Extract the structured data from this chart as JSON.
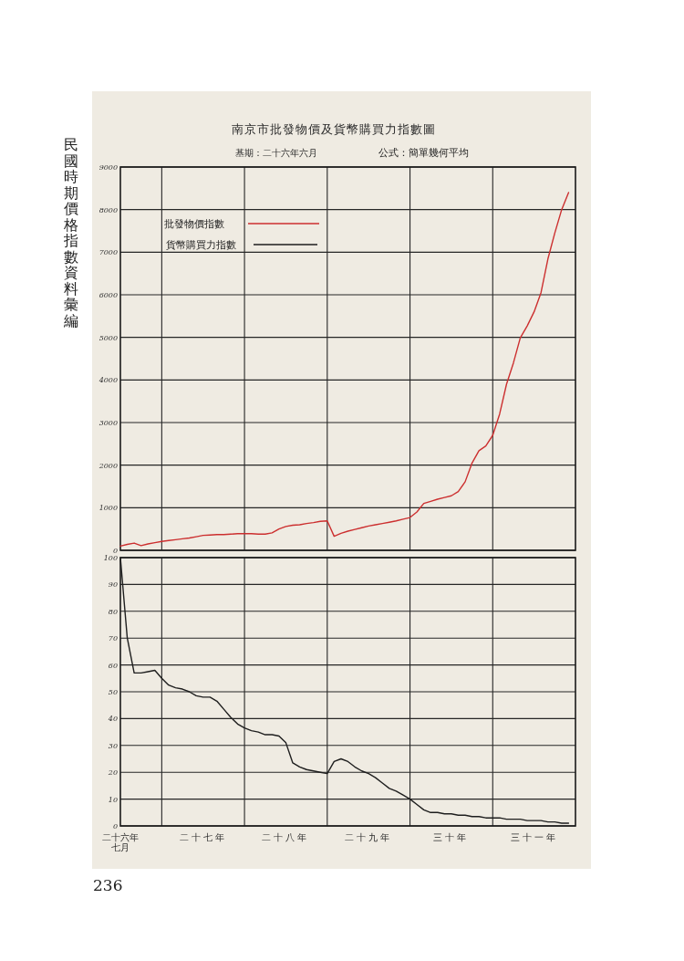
{
  "chart_data": [
    {
      "type": "line",
      "title": "南京市批發物價及貨幣購買力指數圖",
      "subtitle": "基期：二十六年六月",
      "annotations": [
        "公式：簡單幾何平均",
        "民國時期價格指數資料彙編",
        "236"
      ],
      "categories": [
        "二十六年七月",
        null,
        null,
        null,
        null,
        null,
        null,
        null,
        null,
        null,
        null,
        null,
        "二十七年",
        null,
        null,
        null,
        null,
        null,
        null,
        null,
        null,
        null,
        null,
        null,
        "二十八年",
        null,
        null,
        null,
        null,
        null,
        null,
        null,
        null,
        null,
        null,
        null,
        "二十九年",
        null,
        null,
        null,
        null,
        null,
        null,
        null,
        null,
        null,
        null,
        null,
        "三十年",
        null,
        null,
        null,
        null,
        null,
        null,
        null,
        null,
        null,
        null,
        null,
        "三十一年",
        null,
        null,
        null,
        null,
        null
      ],
      "ylim": [
        0,
        9000
      ],
      "yticks": [
        0,
        1000,
        2000,
        3000,
        4000,
        5000,
        6000,
        7000,
        8000,
        9000
      ],
      "grid": true,
      "legend": "top left",
      "tick_labels": "y",
      "series": [
        {
          "name": "批發物價指數",
          "color": "#cc2f2f",
          "values": [
            100,
            140,
            170,
            110,
            150,
            180,
            210,
            230,
            250,
            270,
            290,
            320,
            350,
            360,
            370,
            370,
            380,
            390,
            390,
            390,
            380,
            380,
            410,
            500,
            560,
            590,
            600,
            630,
            650,
            680,
            690,
            330,
            400,
            450,
            490,
            530,
            570,
            600,
            630,
            660,
            690,
            730,
            770,
            900,
            1100,
            1150,
            1200,
            1240,
            1280,
            1380,
            1610,
            2050,
            2340,
            2450,
            2700,
            3200,
            3900,
            4400,
            4990,
            5270,
            5600,
            6050,
            6840,
            7450,
            8000,
            8400
          ]
        }
      ]
    },
    {
      "type": "line",
      "categories": [
        "二十六年七月",
        null,
        null,
        null,
        null,
        null,
        null,
        null,
        null,
        null,
        null,
        null,
        "二十七年",
        null,
        null,
        null,
        null,
        null,
        null,
        null,
        null,
        null,
        null,
        null,
        "二十八年",
        null,
        null,
        null,
        null,
        null,
        null,
        null,
        null,
        null,
        null,
        null,
        "二十九年",
        null,
        null,
        null,
        null,
        null,
        null,
        null,
        null,
        null,
        null,
        null,
        "三十年",
        null,
        null,
        null,
        null,
        null,
        null,
        null,
        null,
        null,
        null,
        null,
        "三十一年",
        null,
        null,
        null,
        null,
        null
      ],
      "ylim": [
        0,
        100
      ],
      "yticks": [
        0,
        10,
        20,
        30,
        40,
        50,
        60,
        70,
        80,
        90,
        100
      ],
      "grid": true,
      "series": [
        {
          "name": "貨幣購買力指數",
          "color": "#1e1e1e",
          "values": [
            100,
            70,
            57,
            57,
            57.5,
            58,
            55,
            52.5,
            51.5,
            51,
            50,
            48.5,
            48,
            48,
            46.5,
            43.5,
            40.5,
            38,
            36.5,
            35.5,
            35,
            34,
            34,
            33.5,
            31,
            23.5,
            22,
            21,
            20.5,
            20,
            19.5,
            24,
            25,
            24,
            22,
            20.5,
            19.5,
            18,
            16,
            14,
            13,
            11.5,
            10,
            8,
            6,
            5,
            5,
            4.5,
            4.5,
            4,
            4,
            3.5,
            3.5,
            3,
            3,
            3,
            2.5,
            2.5,
            2.5,
            2,
            2,
            2,
            1.5,
            1.5,
            1,
            1
          ]
        }
      ]
    }
  ]
}
